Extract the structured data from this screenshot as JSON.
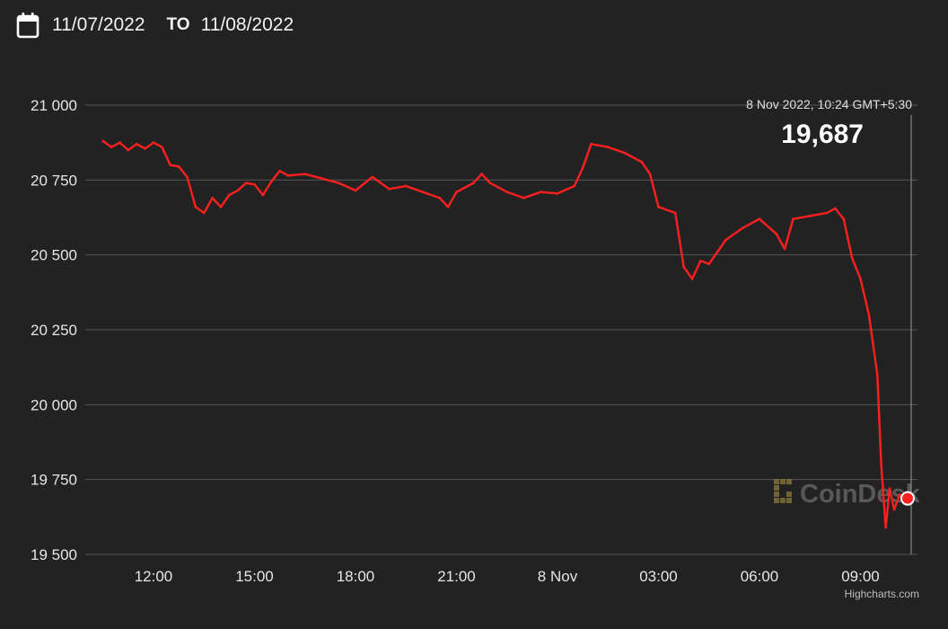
{
  "header": {
    "from_date": "11/07/2022",
    "to_label": "TO",
    "to_date": "11/08/2022",
    "icon": "calendar-icon"
  },
  "tooltip": {
    "time": "8 Nov 2022, 10:24 GMT+5:30",
    "value": "19,687"
  },
  "watermark": "CoinDesk",
  "credit": "Highcharts.com",
  "colors": {
    "background": "#222222",
    "line_down": "#ff1f1f",
    "line_up": "#3ecf5a",
    "grid": "#555555"
  },
  "chart_data": {
    "type": "line",
    "title": "",
    "xlabel": "",
    "ylabel": "",
    "ylim": [
      19500,
      21000
    ],
    "yticks": [
      21000,
      20750,
      20500,
      20250,
      20000,
      19750,
      19500
    ],
    "ytick_labels": [
      "21 000",
      "20 750",
      "20 500",
      "20 250",
      "20 000",
      "19 750",
      "19 500"
    ],
    "xticks": [
      {
        "label": "12:00",
        "x": "2022-11-07 12:00"
      },
      {
        "label": "15:00",
        "x": "2022-11-07 15:00"
      },
      {
        "label": "18:00",
        "x": "2022-11-07 18:00"
      },
      {
        "label": "21:00",
        "x": "2022-11-07 21:00"
      },
      {
        "label": "8 Nov",
        "x": "2022-11-08 00:00"
      },
      {
        "label": "03:00",
        "x": "2022-11-08 03:00"
      },
      {
        "label": "06:00",
        "x": "2022-11-08 06:00"
      },
      {
        "label": "09:00",
        "x": "2022-11-08 09:00"
      }
    ],
    "grid": true,
    "series": [
      {
        "points": [
          [
            "2022-11-07 10:30",
            20880
          ],
          [
            "2022-11-07 10:45",
            20860
          ],
          [
            "2022-11-07 11:00",
            20875
          ],
          [
            "2022-11-07 11:15",
            20850
          ],
          [
            "2022-11-07 11:30",
            20870
          ],
          [
            "2022-11-07 11:45",
            20855
          ],
          [
            "2022-11-07 12:00",
            20875
          ],
          [
            "2022-11-07 12:15",
            20860
          ],
          [
            "2022-11-07 12:30",
            20800
          ],
          [
            "2022-11-07 12:45",
            20795
          ],
          [
            "2022-11-07 13:00",
            20760
          ],
          [
            "2022-11-07 13:15",
            20660
          ],
          [
            "2022-11-07 13:30",
            20640
          ],
          [
            "2022-11-07 13:45",
            20690
          ],
          [
            "2022-11-07 14:00",
            20660
          ],
          [
            "2022-11-07 14:15",
            20700
          ],
          [
            "2022-11-07 14:30",
            20715
          ],
          [
            "2022-11-07 14:45",
            20740
          ],
          [
            "2022-11-07 15:00",
            20735
          ],
          [
            "2022-11-07 15:15",
            20700
          ],
          [
            "2022-11-07 15:30",
            20745
          ],
          [
            "2022-11-07 15:45",
            20780
          ],
          [
            "2022-11-07 16:00",
            20765
          ],
          [
            "2022-11-07 16:30",
            20770
          ],
          [
            "2022-11-07 17:00",
            20755
          ],
          [
            "2022-11-07 17:30",
            20740
          ],
          [
            "2022-11-07 18:00",
            20715
          ],
          [
            "2022-11-07 18:30",
            20760
          ],
          [
            "2022-11-07 19:00",
            20720
          ],
          [
            "2022-11-07 19:30",
            20730
          ],
          [
            "2022-11-07 20:00",
            20710
          ],
          [
            "2022-11-07 20:30",
            20690
          ],
          [
            "2022-11-07 20:45",
            20660
          ],
          [
            "2022-11-07 21:00",
            20710
          ],
          [
            "2022-11-07 21:30",
            20740
          ],
          [
            "2022-11-07 21:45",
            20770
          ],
          [
            "2022-11-07 22:00",
            20740
          ],
          [
            "2022-11-07 22:30",
            20710
          ],
          [
            "2022-11-07 23:00",
            20690
          ],
          [
            "2022-11-07 23:30",
            20710
          ],
          [
            "2022-11-08 00:00",
            20705
          ],
          [
            "2022-11-08 00:30",
            20730
          ],
          [
            "2022-11-08 00:45",
            20790
          ],
          [
            "2022-11-08 01:00",
            20870
          ],
          [
            "2022-11-08 01:30",
            20860
          ],
          [
            "2022-11-08 02:00",
            20840
          ],
          [
            "2022-11-08 02:30",
            20810
          ],
          [
            "2022-11-08 02:45",
            20770
          ],
          [
            "2022-11-08 03:00",
            20660
          ],
          [
            "2022-11-08 03:30",
            20640
          ],
          [
            "2022-11-08 03:45",
            20460
          ],
          [
            "2022-11-08 04:00",
            20420
          ],
          [
            "2022-11-08 04:15",
            20480
          ],
          [
            "2022-11-08 04:30",
            20470
          ],
          [
            "2022-11-08 05:00",
            20550
          ],
          [
            "2022-11-08 05:30",
            20590
          ],
          [
            "2022-11-08 06:00",
            20620
          ],
          [
            "2022-11-08 06:30",
            20570
          ],
          [
            "2022-11-08 06:45",
            20520
          ],
          [
            "2022-11-08 07:00",
            20620
          ],
          [
            "2022-11-08 07:30",
            20630
          ],
          [
            "2022-11-08 08:00",
            20640
          ],
          [
            "2022-11-08 08:15",
            20655
          ],
          [
            "2022-11-08 08:30",
            20620
          ],
          [
            "2022-11-08 08:45",
            20490
          ],
          [
            "2022-11-08 09:00",
            20420
          ],
          [
            "2022-11-08 09:15",
            20300
          ],
          [
            "2022-11-08 09:30",
            20100
          ],
          [
            "2022-11-08 09:37",
            19800
          ],
          [
            "2022-11-08 09:45",
            19590
          ],
          [
            "2022-11-08 09:52",
            19720
          ],
          [
            "2022-11-08 10:00",
            19650
          ],
          [
            "2022-11-08 10:10",
            19700
          ],
          [
            "2022-11-08 10:24",
            19687
          ]
        ]
      }
    ],
    "highlight": {
      "x": "2022-11-08 10:24",
      "y": 19687
    }
  }
}
